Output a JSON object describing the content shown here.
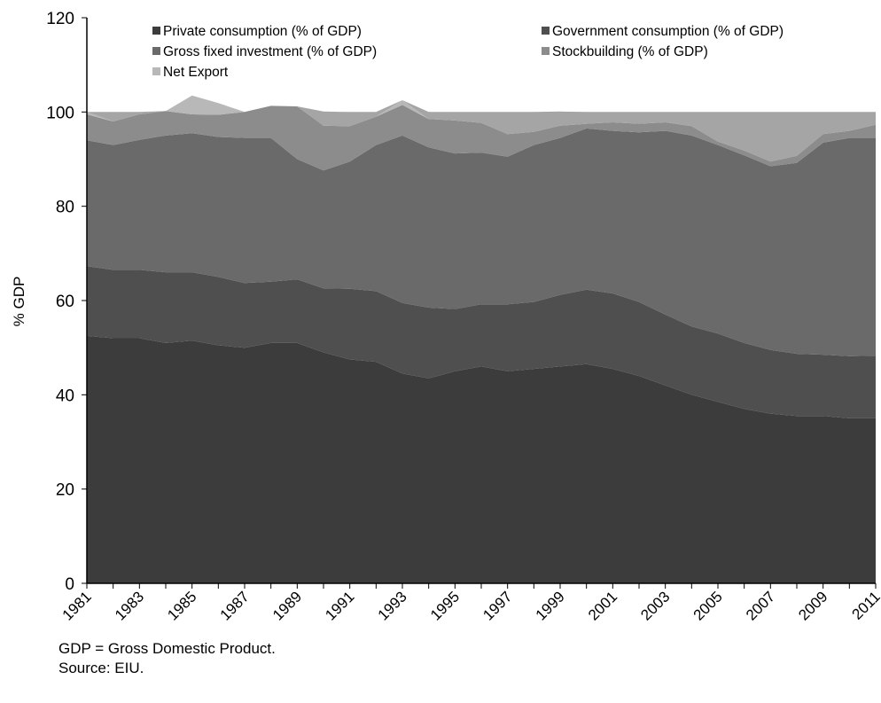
{
  "chart_data": {
    "type": "area",
    "stacked": true,
    "title": "",
    "xlabel": "",
    "ylabel": "% GDP",
    "ylim": [
      0,
      120
    ],
    "yticks": [
      0,
      20,
      40,
      60,
      80,
      100,
      120
    ],
    "xlim": [
      1981,
      2011
    ],
    "xtick_labels": [
      "1981",
      "1983",
      "1985",
      "1987",
      "1989",
      "1991",
      "1993",
      "1995",
      "1997",
      "1999",
      "2001",
      "2003",
      "2005",
      "2007",
      "2009",
      "2011"
    ],
    "grid": false,
    "legend_position": "top",
    "x": [
      1981,
      1982,
      1983,
      1984,
      1985,
      1986,
      1987,
      1988,
      1989,
      1990,
      1991,
      1992,
      1993,
      1994,
      1995,
      1996,
      1997,
      1998,
      1999,
      2000,
      2001,
      2002,
      2003,
      2004,
      2005,
      2006,
      2007,
      2008,
      2009,
      2010,
      2011
    ],
    "series": [
      {
        "name": "Private consumption (% of GDP)",
        "color": "#3c3c3c",
        "values": [
          52.5,
          52.0,
          52.0,
          51.0,
          51.5,
          50.5,
          50.0,
          51.0,
          51.0,
          49.0,
          47.5,
          47.0,
          44.5,
          43.5,
          45.0,
          46.0,
          45.0,
          45.5,
          46.0,
          46.5,
          45.5,
          44.0,
          42.0,
          40.0,
          38.5,
          37.0,
          36.0,
          35.5,
          35.5,
          35.0,
          35.0
        ]
      },
      {
        "name": "Government consumption (% of GDP)",
        "color": "#4f4f4f",
        "values": [
          14.8,
          14.5,
          14.5,
          15.0,
          14.5,
          14.5,
          13.7,
          13.0,
          13.5,
          13.6,
          15.0,
          15.0,
          15.0,
          15.0,
          13.2,
          13.2,
          14.2,
          14.2,
          15.2,
          15.8,
          16.0,
          15.7,
          15.0,
          14.5,
          14.5,
          14.0,
          13.5,
          13.2,
          13.0,
          13.2,
          13.3
        ]
      },
      {
        "name": "Gross fixed investment (% of GDP)",
        "color": "#6a6a6a",
        "values": [
          26.7,
          26.5,
          27.6,
          29.0,
          29.5,
          29.7,
          30.8,
          30.5,
          25.5,
          25.0,
          27.0,
          31.0,
          35.5,
          34.0,
          33.0,
          32.2,
          31.3,
          33.3,
          33.3,
          34.2,
          34.5,
          36.0,
          39.0,
          40.5,
          40.0,
          39.8,
          39.0,
          40.5,
          45.0,
          46.3,
          46.2
        ]
      },
      {
        "name": "Stockbuilding (% of GDP)",
        "color": "#8c8c8c",
        "values": [
          5.5,
          5.0,
          5.4,
          5.2,
          4.0,
          4.7,
          5.5,
          6.8,
          11.2,
          9.5,
          7.5,
          6.0,
          6.5,
          6.0,
          7.0,
          6.3,
          4.8,
          2.8,
          2.6,
          1.0,
          1.8,
          1.8,
          1.8,
          2.0,
          0.7,
          1.0,
          1.0,
          1.5,
          1.8,
          1.5,
          2.8
        ]
      },
      {
        "name": "Net Export",
        "color": "#b8b8b8",
        "values": [
          0.5,
          0.0,
          0.0,
          0.0,
          4.0,
          2.5,
          0.0,
          0.0,
          0.0,
          0.0,
          0.0,
          0.0,
          1.0,
          0.0,
          0.0,
          0.0,
          0.0,
          0.0,
          0.0,
          0.0,
          0.0,
          0.0,
          0.0,
          0.0,
          0.0,
          0.0,
          0.0,
          0.0,
          0.0,
          0.0,
          0.0
        ]
      },
      {
        "name": "",
        "color": "#a5a5a5",
        "values": [
          0.0,
          2.0,
          0.5,
          0.0,
          0.0,
          0.0,
          0.0,
          0.0,
          0.0,
          3.0,
          3.0,
          1.0,
          0.0,
          1.5,
          1.8,
          2.3,
          4.7,
          4.2,
          3.0,
          2.5,
          2.2,
          2.5,
          2.2,
          3.0,
          6.3,
          8.2,
          10.5,
          9.3,
          4.7,
          4.0,
          2.7
        ]
      }
    ]
  },
  "footnote": {
    "note": "GDP = Gross Domestic Product.",
    "source": "Source: EIU."
  }
}
